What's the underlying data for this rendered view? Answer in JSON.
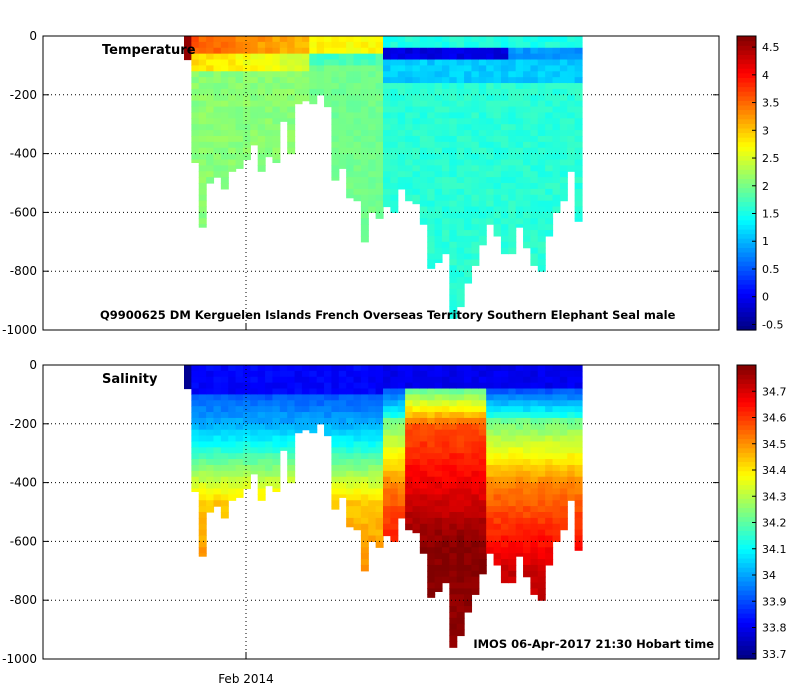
{
  "chart_data": [
    {
      "type": "heatmap",
      "title": "Temperature",
      "variable": "temperature",
      "annotation": "Q9900625 DM Kerguelen Islands French Overseas Territory Southern Elephant Seal  male",
      "ylim": [
        -1000,
        0
      ],
      "yticks": [
        0,
        -200,
        -400,
        -600,
        -800,
        -1000
      ],
      "ytick_labels": [
        "0",
        "-200",
        "-400",
        "-600",
        "-800",
        "-1000"
      ],
      "colorbar": {
        "range": [
          -0.6,
          4.7
        ],
        "ticks": [
          4.5,
          4,
          3.5,
          3,
          2.5,
          2,
          1.5,
          1,
          0.5,
          0,
          -0.5
        ],
        "tick_labels": [
          "4.5",
          "4",
          "3.5",
          "3",
          "2.5",
          "2",
          "1.5",
          "1",
          "0.5",
          "0",
          "-0.5"
        ]
      },
      "grid": true
    },
    {
      "type": "heatmap",
      "title": "Salinity",
      "variable": "salinity",
      "annotation": "IMOS 06-Apr-2017 21:30 Hobart time",
      "ylim": [
        -1000,
        0
      ],
      "yticks": [
        0,
        -200,
        -400,
        -600,
        -800,
        -1000
      ],
      "ytick_labels": [
        "0",
        "-200",
        "-400",
        "-600",
        "-800",
        "-1000"
      ],
      "colorbar": {
        "range": [
          33.68,
          34.8
        ],
        "ticks": [
          34.7,
          34.6,
          34.5,
          34.4,
          34.3,
          34.2,
          34.1,
          34,
          33.9,
          33.8,
          33.7
        ],
        "tick_labels": [
          "34.7",
          "34.6",
          "34.5",
          "34.4",
          "34.3",
          "34.2",
          "34.1",
          "34",
          "33.9",
          "33.8",
          "33.7"
        ]
      },
      "grid": true
    }
  ],
  "xaxis": {
    "tick_label": "Feb 2014"
  },
  "profiles": {
    "max_depth": [
      80,
      430,
      650,
      500,
      480,
      520,
      460,
      450,
      420,
      370,
      460,
      410,
      430,
      290,
      400,
      230,
      220,
      230,
      200,
      240,
      490,
      450,
      550,
      560,
      700,
      600,
      620,
      580,
      600,
      520,
      560,
      570,
      640,
      790,
      770,
      740,
      960,
      920,
      840,
      780,
      710,
      640,
      680,
      740,
      740,
      650,
      720,
      780,
      800,
      680,
      600,
      560,
      460,
      630
    ]
  }
}
